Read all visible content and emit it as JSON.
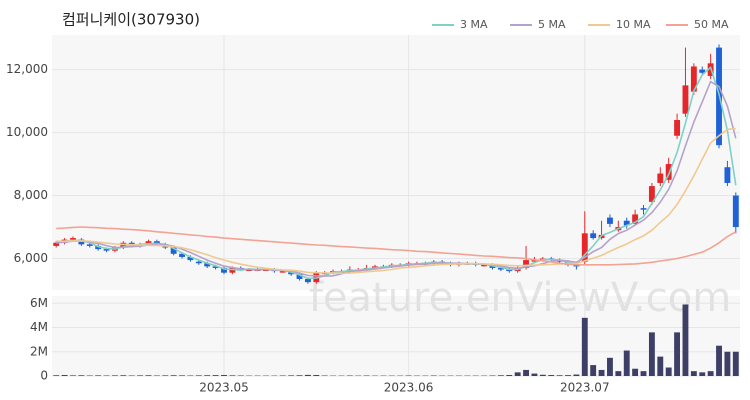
{
  "chart_data": {
    "type": "candlestick",
    "title": "컴퍼니케이(307930)",
    "watermark": "feature.enViewV.com",
    "categories": [
      null,
      null,
      null,
      null,
      null,
      null,
      null,
      null,
      null,
      null,
      null,
      null,
      null,
      null,
      null,
      null,
      null,
      null,
      null,
      null,
      "2023.05",
      null,
      null,
      null,
      null,
      null,
      null,
      null,
      null,
      null,
      null,
      null,
      null,
      null,
      null,
      null,
      null,
      null,
      null,
      null,
      null,
      null,
      "2023.06",
      null,
      null,
      null,
      null,
      null,
      null,
      null,
      null,
      null,
      null,
      null,
      null,
      null,
      null,
      null,
      null,
      null,
      null,
      null,
      null,
      "2023.07",
      null,
      null,
      null,
      null,
      null,
      null,
      null,
      null,
      null,
      null,
      null,
      null,
      null,
      null,
      null,
      null,
      null,
      null
    ],
    "open": [
      6400,
      6500,
      6600,
      6600,
      6450,
      6400,
      6300,
      6250,
      6350,
      6500,
      6400,
      6450,
      6550,
      6450,
      6350,
      6150,
      6050,
      5900,
      5850,
      5750,
      5700,
      5550,
      5700,
      5650,
      5650,
      5650,
      5650,
      5600,
      5600,
      5500,
      5350,
      5250,
      5550,
      5550,
      5600,
      5600,
      5650,
      5650,
      5700,
      5750,
      5750,
      5800,
      5800,
      5850,
      5850,
      5850,
      5900,
      5850,
      5800,
      5850,
      5850,
      5800,
      5800,
      5700,
      5650,
      5600,
      5700,
      5950,
      5950,
      6000,
      5950,
      5900,
      5800,
      5900,
      6800,
      6650,
      7300,
      6900,
      7200,
      7100,
      7600,
      7800,
      8400,
      8500,
      9900,
      10600,
      11300,
      12000,
      11800,
      12700,
      8900,
      8000
    ],
    "high": [
      6550,
      6650,
      6700,
      6650,
      6500,
      6450,
      6350,
      6400,
      6550,
      6550,
      6500,
      6600,
      6600,
      6500,
      6400,
      6200,
      6100,
      5950,
      5900,
      5800,
      5750,
      5750,
      5750,
      5700,
      5700,
      5700,
      5700,
      5650,
      5650,
      5550,
      5400,
      5600,
      5600,
      5650,
      5650,
      5750,
      5700,
      5800,
      5800,
      5800,
      5850,
      5850,
      5900,
      5900,
      5900,
      5950,
      5950,
      5900,
      5900,
      5900,
      5900,
      5850,
      5850,
      5750,
      5700,
      5750,
      6400,
      6050,
      6050,
      6050,
      6000,
      5950,
      5850,
      7500,
      6900,
      7200,
      7400,
      7200,
      7300,
      7550,
      7700,
      8400,
      8900,
      9200,
      10600,
      12700,
      12200,
      12100,
      12500,
      12800,
      9100,
      8100
    ],
    "low": [
      6350,
      6450,
      6550,
      6400,
      6350,
      6250,
      6200,
      6200,
      6300,
      6350,
      6350,
      6400,
      6400,
      6300,
      6100,
      6000,
      5900,
      5800,
      5700,
      5650,
      5500,
      5500,
      5600,
      5600,
      5600,
      5600,
      5550,
      5550,
      5450,
      5300,
      5200,
      5200,
      5500,
      5500,
      5550,
      5550,
      5600,
      5600,
      5650,
      5700,
      5700,
      5750,
      5750,
      5800,
      5800,
      5800,
      5800,
      5750,
      5750,
      5800,
      5750,
      5750,
      5650,
      5600,
      5550,
      5550,
      5650,
      5900,
      5900,
      5900,
      5850,
      5750,
      5650,
      5800,
      6600,
      6600,
      7000,
      6850,
      6950,
      7050,
      7400,
      7700,
      8300,
      8400,
      9800,
      10500,
      11200,
      11800,
      11700,
      9500,
      8300,
      6800
    ],
    "close": [
      6500,
      6600,
      6650,
      6450,
      6400,
      6300,
      6250,
      6350,
      6500,
      6400,
      6450,
      6550,
      6450,
      6350,
      6150,
      6050,
      5950,
      5850,
      5750,
      5700,
      5550,
      5700,
      5650,
      5650,
      5650,
      5650,
      5600,
      5600,
      5500,
      5350,
      5250,
      5550,
      5550,
      5600,
      5600,
      5650,
      5650,
      5700,
      5750,
      5750,
      5800,
      5800,
      5850,
      5850,
      5850,
      5900,
      5850,
      5800,
      5850,
      5850,
      5800,
      5800,
      5700,
      5650,
      5600,
      5700,
      5950,
      5950,
      6000,
      5950,
      5900,
      5800,
      5750,
      6800,
      6650,
      6750,
      7100,
      7000,
      7050,
      7400,
      7550,
      8300,
      8700,
      9000,
      10400,
      11500,
      12100,
      11900,
      12200,
      9600,
      8400,
      7000
    ],
    "up_color": "#e5262b",
    "down_color": "#1f62d6",
    "ylim": [
      5000,
      13100
    ],
    "yticks": [
      {
        "value": 6000,
        "label": "6,000"
      },
      {
        "value": 8000,
        "label": "8,000"
      },
      {
        "value": 10000,
        "label": "10,000"
      },
      {
        "value": 12000,
        "label": "12,000"
      }
    ],
    "series": [
      {
        "name": "3 MA",
        "color": "#7fd1c7",
        "values": [
          6500,
          6550,
          6580,
          6570,
          6500,
          6380,
          6320,
          6300,
          6370,
          6420,
          6450,
          6470,
          6480,
          6450,
          6320,
          6180,
          6050,
          5950,
          5850,
          5770,
          5670,
          5650,
          5630,
          5670,
          5650,
          5650,
          5630,
          5620,
          5570,
          5480,
          5370,
          5380,
          5450,
          5570,
          5580,
          5620,
          5630,
          5670,
          5700,
          5730,
          5770,
          5780,
          5820,
          5830,
          5850,
          5870,
          5870,
          5850,
          5830,
          5830,
          5830,
          5820,
          5770,
          5720,
          5650,
          5650,
          5750,
          5870,
          5970,
          5970,
          5950,
          5880,
          5820,
          6120,
          6400,
          6730,
          6830,
          6950,
          7050,
          7150,
          7330,
          7750,
          8180,
          8670,
          9370,
          10300,
          11330,
          11830,
          12070,
          11230,
          10070,
          8330
        ]
      },
      {
        "name": "5 MA",
        "color": "#b6a2c9",
        "values": [
          6500,
          6520,
          6550,
          6560,
          6520,
          6480,
          6410,
          6350,
          6360,
          6380,
          6390,
          6430,
          6470,
          6440,
          6390,
          6300,
          6190,
          6070,
          5950,
          5850,
          5760,
          5710,
          5670,
          5650,
          5640,
          5660,
          5640,
          5630,
          5600,
          5540,
          5460,
          5450,
          5440,
          5450,
          5510,
          5590,
          5610,
          5640,
          5670,
          5700,
          5730,
          5760,
          5790,
          5810,
          5830,
          5850,
          5860,
          5850,
          5850,
          5840,
          5830,
          5820,
          5800,
          5760,
          5710,
          5690,
          5730,
          5770,
          5840,
          5910,
          5950,
          5920,
          5880,
          6040,
          6220,
          6350,
          6610,
          6790,
          6900,
          7060,
          7220,
          7460,
          7790,
          8200,
          8790,
          9580,
          10340,
          10970,
          11620,
          11460,
          10840,
          9820
        ]
      },
      {
        "name": "10 MA",
        "color": "#f0c992",
        "values": [
          6550,
          6550,
          6560,
          6560,
          6550,
          6520,
          6490,
          6460,
          6450,
          6440,
          6430,
          6420,
          6410,
          6400,
          6380,
          6340,
          6280,
          6200,
          6120,
          6030,
          5950,
          5880,
          5820,
          5770,
          5720,
          5690,
          5660,
          5640,
          5630,
          5600,
          5560,
          5550,
          5540,
          5540,
          5530,
          5540,
          5560,
          5580,
          5600,
          5620,
          5650,
          5700,
          5720,
          5740,
          5770,
          5790,
          5810,
          5820,
          5830,
          5840,
          5840,
          5830,
          5820,
          5800,
          5780,
          5770,
          5780,
          5790,
          5800,
          5810,
          5830,
          5840,
          5840,
          5930,
          6010,
          6100,
          6230,
          6350,
          6460,
          6600,
          6720,
          6900,
          7150,
          7380,
          7720,
          8150,
          8630,
          9150,
          9670,
          9900,
          10100,
          10130
        ]
      },
      {
        "name": "50 MA",
        "color": "#f2a394",
        "values": [
          6950,
          6970,
          6990,
          7000,
          6990,
          6980,
          6960,
          6950,
          6930,
          6920,
          6900,
          6880,
          6850,
          6830,
          6800,
          6780,
          6750,
          6730,
          6700,
          6680,
          6650,
          6630,
          6610,
          6590,
          6570,
          6550,
          6530,
          6510,
          6490,
          6470,
          6450,
          6430,
          6420,
          6400,
          6380,
          6370,
          6350,
          6330,
          6320,
          6300,
          6280,
          6270,
          6250,
          6230,
          6220,
          6200,
          6180,
          6160,
          6140,
          6120,
          6100,
          6080,
          6070,
          6050,
          6030,
          6020,
          6000,
          5960,
          5930,
          5890,
          5850,
          5820,
          5800,
          5800,
          5800,
          5800,
          5800,
          5810,
          5820,
          5830,
          5850,
          5880,
          5920,
          5960,
          6000,
          6060,
          6130,
          6200,
          6330,
          6500,
          6700,
          6850
        ]
      }
    ],
    "volume": {
      "color": "#3d3f66",
      "values": [
        60000,
        80000,
        50000,
        60000,
        40000,
        50000,
        40000,
        50000,
        60000,
        40000,
        50000,
        60000,
        40000,
        50000,
        60000,
        50000,
        40000,
        50000,
        60000,
        70000,
        80000,
        50000,
        40000,
        30000,
        30000,
        30000,
        30000,
        40000,
        50000,
        60000,
        90000,
        80000,
        40000,
        30000,
        30000,
        40000,
        30000,
        40000,
        30000,
        30000,
        30000,
        30000,
        40000,
        30000,
        30000,
        40000,
        30000,
        30000,
        30000,
        30000,
        30000,
        30000,
        40000,
        60000,
        80000,
        300000,
        500000,
        200000,
        100000,
        80000,
        60000,
        70000,
        120000,
        4800000,
        900000,
        500000,
        1500000,
        400000,
        2100000,
        600000,
        400000,
        3600000,
        1600000,
        700000,
        3600000,
        5900000,
        400000,
        300000,
        400000,
        2500000,
        2000000,
        2000000
      ],
      "ylim": [
        0,
        6600000
      ],
      "yticks": [
        0,
        {
          "value": 2000000,
          "label": "2M"
        },
        {
          "value": 4000000,
          "label": "4M"
        },
        {
          "value": 6000000,
          "label": "6M"
        }
      ]
    }
  }
}
